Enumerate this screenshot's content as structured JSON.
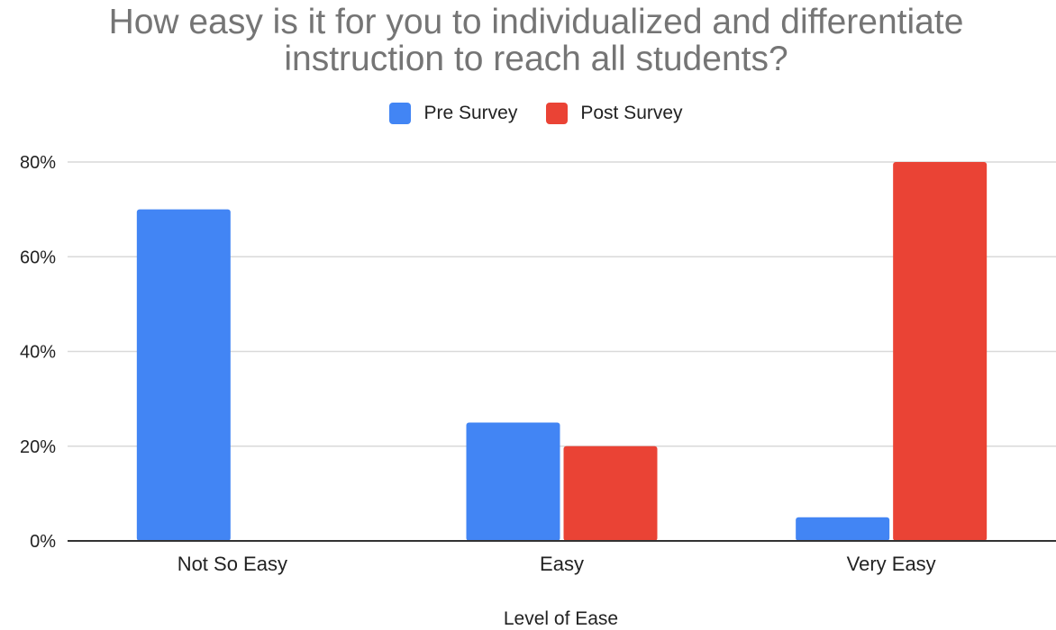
{
  "chart_data": {
    "type": "bar",
    "title": "How easy is it for you to individualized and differentiate instruction to reach all students?",
    "title_lines": [
      "How easy is it for you to individualized and differentiate",
      "instruction to reach all students?"
    ],
    "xlabel": "Level of Ease",
    "ylabel": "",
    "categories": [
      "Not So Easy",
      "Easy",
      "Very Easy"
    ],
    "series": [
      {
        "name": "Pre Survey",
        "color": "#4285F4",
        "values": [
          70,
          25,
          5
        ]
      },
      {
        "name": "Post Survey",
        "color": "#EA4335",
        "values": [
          0,
          20,
          80
        ]
      }
    ],
    "ylim": [
      0,
      80
    ],
    "yticks": [
      {
        "value": 0,
        "label": "0%"
      },
      {
        "value": 20,
        "label": "20%"
      },
      {
        "value": 40,
        "label": "40%"
      },
      {
        "value": 60,
        "label": "60%"
      },
      {
        "value": 80,
        "label": "80%"
      }
    ],
    "grid": true,
    "legend_position": "top-center",
    "colors": {
      "gridline": "#D9D9D9",
      "axis": "#333333",
      "tick_label": "#222222",
      "title": "#757575"
    }
  }
}
